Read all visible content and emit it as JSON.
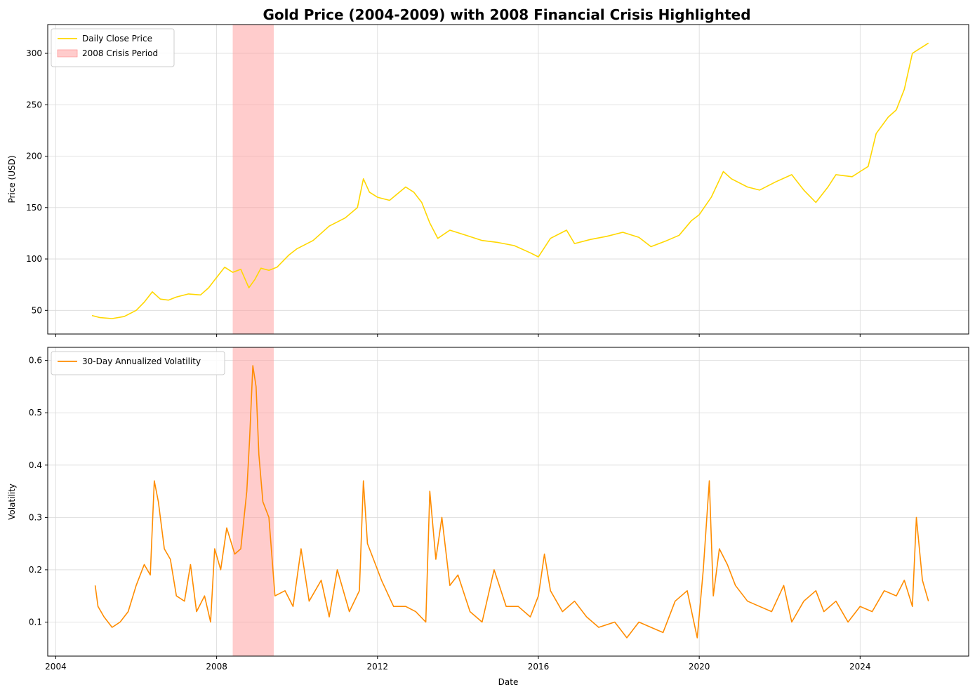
{
  "figure": {
    "title": "Gold Price (2004-2009) with 2008 Financial Crisis Highlighted"
  },
  "colors": {
    "price_line": "#FFD700",
    "volatility_line": "#FF8C00",
    "crisis_fill": "#FF9999",
    "grid": "#d9d9d9"
  },
  "chart_data": [
    {
      "type": "line",
      "title": "Gold Price (2004-2009) with 2008 Financial Crisis Highlighted",
      "xlabel": "",
      "ylabel": "Price (USD)",
      "xlim": [
        2003.8,
        2026.7
      ],
      "ylim": [
        27,
        328
      ],
      "yticks": [
        50,
        100,
        150,
        200,
        250,
        300
      ],
      "xticks": [
        2004,
        2008,
        2012,
        2016,
        2020,
        2024
      ],
      "grid": true,
      "legend": "top-left",
      "legend_entries": [
        "Daily Close Price",
        "2008 Crisis Period"
      ],
      "shaded_region": {
        "label": "2008 Crisis Period",
        "x_start": 2008.4,
        "x_end": 2009.42
      },
      "series": [
        {
          "name": "Daily Close Price",
          "x": [
            2004.9,
            2005.1,
            2005.4,
            2005.7,
            2006.0,
            2006.2,
            2006.4,
            2006.6,
            2006.8,
            2007.0,
            2007.3,
            2007.6,
            2007.8,
            2008.0,
            2008.2,
            2008.4,
            2008.6,
            2008.8,
            2008.95,
            2009.1,
            2009.3,
            2009.5,
            2009.8,
            2010.0,
            2010.4,
            2010.8,
            2011.2,
            2011.5,
            2011.65,
            2011.8,
            2012.0,
            2012.3,
            2012.7,
            2012.9,
            2013.1,
            2013.3,
            2013.5,
            2013.8,
            2014.2,
            2014.6,
            2015.0,
            2015.4,
            2015.8,
            2016.0,
            2016.3,
            2016.7,
            2016.9,
            2017.3,
            2017.7,
            2018.1,
            2018.5,
            2018.8,
            2019.2,
            2019.5,
            2019.8,
            2020.0,
            2020.3,
            2020.6,
            2020.8,
            2021.2,
            2021.5,
            2021.9,
            2022.3,
            2022.6,
            2022.9,
            2023.2,
            2023.4,
            2023.8,
            2024.0,
            2024.2,
            2024.4,
            2024.7,
            2024.9,
            2025.1,
            2025.3,
            2025.5,
            2025.7
          ],
          "values": [
            45,
            43,
            42,
            44,
            50,
            58,
            68,
            61,
            60,
            63,
            66,
            65,
            72,
            82,
            92,
            87,
            90,
            72,
            80,
            91,
            89,
            92,
            104,
            110,
            118,
            132,
            140,
            150,
            178,
            165,
            160,
            157,
            170,
            165,
            155,
            135,
            120,
            128,
            123,
            118,
            116,
            113,
            106,
            102,
            120,
            128,
            115,
            119,
            122,
            126,
            121,
            112,
            118,
            123,
            137,
            143,
            160,
            185,
            178,
            170,
            167,
            175,
            182,
            167,
            155,
            170,
            182,
            180,
            185,
            190,
            222,
            238,
            245,
            265,
            300,
            305,
            310
          ]
        }
      ]
    },
    {
      "type": "line",
      "title": "",
      "xlabel": "Date",
      "ylabel": "Volatility",
      "xlim": [
        2003.8,
        2026.7
      ],
      "ylim": [
        0.035,
        0.625
      ],
      "yticks": [
        0.1,
        0.2,
        0.3,
        0.4,
        0.5,
        0.6
      ],
      "xticks": [
        2004,
        2008,
        2012,
        2016,
        2020,
        2024
      ],
      "grid": true,
      "legend": "top-left",
      "legend_entries": [
        "30-Day Annualized Volatility"
      ],
      "shaded_region": {
        "label": "2008 Crisis Period",
        "x_start": 2008.4,
        "x_end": 2009.42
      },
      "series": [
        {
          "name": "30-Day Annualized Volatility",
          "x": [
            2004.98,
            2005.05,
            2005.2,
            2005.4,
            2005.6,
            2005.8,
            2006.0,
            2006.2,
            2006.35,
            2006.45,
            2006.55,
            2006.7,
            2006.85,
            2007.0,
            2007.2,
            2007.35,
            2007.5,
            2007.7,
            2007.85,
            2007.95,
            2008.1,
            2008.25,
            2008.45,
            2008.6,
            2008.75,
            2008.82,
            2008.9,
            2008.98,
            2009.05,
            2009.15,
            2009.3,
            2009.45,
            2009.7,
            2009.9,
            2010.1,
            2010.3,
            2010.6,
            2010.8,
            2011.0,
            2011.3,
            2011.55,
            2011.65,
            2011.75,
            2011.9,
            2012.1,
            2012.4,
            2012.7,
            2012.95,
            2013.2,
            2013.3,
            2013.45,
            2013.6,
            2013.8,
            2014.0,
            2014.3,
            2014.6,
            2014.9,
            2015.2,
            2015.5,
            2015.8,
            2016.0,
            2016.15,
            2016.3,
            2016.6,
            2016.9,
            2017.2,
            2017.5,
            2017.9,
            2018.2,
            2018.5,
            2018.8,
            2019.1,
            2019.4,
            2019.7,
            2019.95,
            2020.1,
            2020.25,
            2020.35,
            2020.5,
            2020.7,
            2020.9,
            2021.2,
            2021.5,
            2021.8,
            2022.1,
            2022.3,
            2022.6,
            2022.9,
            2023.1,
            2023.4,
            2023.7,
            2024.0,
            2024.3,
            2024.6,
            2024.9,
            2025.1,
            2025.3,
            2025.4,
            2025.55,
            2025.7
          ],
          "values": [
            0.17,
            0.13,
            0.11,
            0.09,
            0.1,
            0.12,
            0.17,
            0.21,
            0.19,
            0.37,
            0.33,
            0.24,
            0.22,
            0.15,
            0.14,
            0.21,
            0.12,
            0.15,
            0.1,
            0.24,
            0.2,
            0.28,
            0.23,
            0.24,
            0.35,
            0.45,
            0.59,
            0.55,
            0.42,
            0.33,
            0.3,
            0.15,
            0.16,
            0.13,
            0.24,
            0.14,
            0.18,
            0.11,
            0.2,
            0.12,
            0.16,
            0.37,
            0.25,
            0.22,
            0.18,
            0.13,
            0.13,
            0.12,
            0.1,
            0.35,
            0.22,
            0.3,
            0.17,
            0.19,
            0.12,
            0.1,
            0.2,
            0.13,
            0.13,
            0.11,
            0.15,
            0.23,
            0.16,
            0.12,
            0.14,
            0.11,
            0.09,
            0.1,
            0.07,
            0.1,
            0.09,
            0.08,
            0.14,
            0.16,
            0.07,
            0.2,
            0.37,
            0.15,
            0.24,
            0.21,
            0.17,
            0.14,
            0.13,
            0.12,
            0.17,
            0.1,
            0.14,
            0.16,
            0.12,
            0.14,
            0.1,
            0.13,
            0.12,
            0.16,
            0.15,
            0.18,
            0.13,
            0.3,
            0.18,
            0.14
          ]
        }
      ]
    }
  ]
}
